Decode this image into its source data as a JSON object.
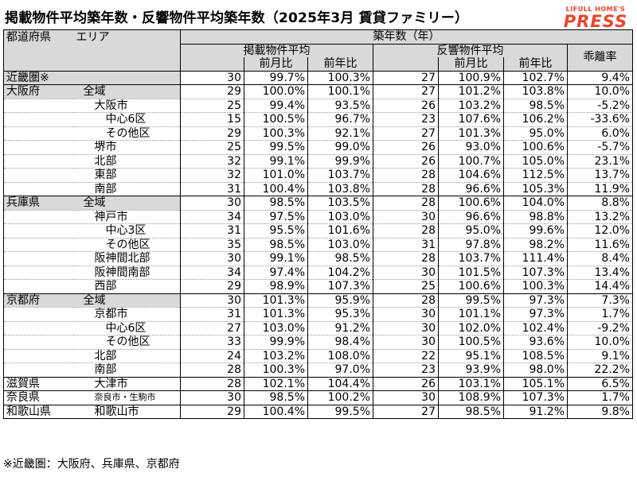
{
  "title": "掲載物件平均築年数・反響物件平均築年数（2025年3月 賃貸ファミリー）",
  "logo": {
    "top": "LIFULL HOME'S",
    "bottom": "PRESS"
  },
  "header": {
    "pref": "都道府県",
    "area": "エリア",
    "group": "築年数（年）",
    "listing": "掲載物件平均",
    "response": "反響物件平均",
    "mom": "前月比",
    "yoy": "前年比",
    "gap": "乖離率"
  },
  "rows": [
    {
      "pref": "近畿圏※",
      "area": "",
      "a": "30",
      "b": "99.7%",
      "c": "100.3%",
      "d": "27",
      "e": "100.9%",
      "f": "102.7%",
      "g": "9.4%"
    },
    {
      "pref": "大阪府",
      "area": "全域",
      "a": "29",
      "b": "100.0%",
      "c": "100.1%",
      "d": "27",
      "e": "101.2%",
      "f": "103.8%",
      "g": "10.0%"
    },
    {
      "pref": "",
      "area": "大阪市",
      "a": "25",
      "b": "99.4%",
      "c": "93.5%",
      "d": "26",
      "e": "103.2%",
      "f": "98.5%",
      "g": "-5.2%"
    },
    {
      "pref": "",
      "area": "中心6区",
      "a": "15",
      "b": "100.5%",
      "c": "96.7%",
      "d": "23",
      "e": "107.6%",
      "f": "106.2%",
      "g": "-33.6%"
    },
    {
      "pref": "",
      "area": "その他区",
      "a": "29",
      "b": "100.3%",
      "c": "92.1%",
      "d": "27",
      "e": "101.3%",
      "f": "95.0%",
      "g": "6.0%"
    },
    {
      "pref": "",
      "area": "堺市",
      "a": "25",
      "b": "99.5%",
      "c": "99.0%",
      "d": "26",
      "e": "93.0%",
      "f": "100.6%",
      "g": "-5.7%"
    },
    {
      "pref": "",
      "area": "北部",
      "a": "32",
      "b": "99.1%",
      "c": "99.9%",
      "d": "26",
      "e": "100.7%",
      "f": "105.0%",
      "g": "23.1%"
    },
    {
      "pref": "",
      "area": "東部",
      "a": "32",
      "b": "101.0%",
      "c": "103.7%",
      "d": "28",
      "e": "104.6%",
      "f": "112.5%",
      "g": "13.7%"
    },
    {
      "pref": "",
      "area": "南部",
      "a": "31",
      "b": "100.4%",
      "c": "103.8%",
      "d": "28",
      "e": "96.6%",
      "f": "105.3%",
      "g": "11.9%"
    },
    {
      "pref": "兵庫県",
      "area": "全域",
      "a": "30",
      "b": "98.5%",
      "c": "103.5%",
      "d": "28",
      "e": "100.6%",
      "f": "104.0%",
      "g": "8.8%"
    },
    {
      "pref": "",
      "area": "神戸市",
      "a": "34",
      "b": "97.5%",
      "c": "103.0%",
      "d": "30",
      "e": "96.6%",
      "f": "98.8%",
      "g": "13.2%"
    },
    {
      "pref": "",
      "area": "中心3区",
      "a": "31",
      "b": "95.5%",
      "c": "101.6%",
      "d": "28",
      "e": "95.0%",
      "f": "99.6%",
      "g": "12.0%"
    },
    {
      "pref": "",
      "area": "その他区",
      "a": "35",
      "b": "98.5%",
      "c": "103.0%",
      "d": "31",
      "e": "97.8%",
      "f": "98.2%",
      "g": "11.6%"
    },
    {
      "pref": "",
      "area": "阪神間北部",
      "a": "30",
      "b": "99.1%",
      "c": "98.5%",
      "d": "28",
      "e": "103.7%",
      "f": "111.4%",
      "g": "8.4%"
    },
    {
      "pref": "",
      "area": "阪神間南部",
      "a": "34",
      "b": "97.4%",
      "c": "104.2%",
      "d": "30",
      "e": "101.5%",
      "f": "107.3%",
      "g": "13.4%"
    },
    {
      "pref": "",
      "area": "西部",
      "a": "29",
      "b": "98.9%",
      "c": "107.3%",
      "d": "25",
      "e": "100.6%",
      "f": "100.3%",
      "g": "14.4%"
    },
    {
      "pref": "京都府",
      "area": "全域",
      "a": "30",
      "b": "101.3%",
      "c": "95.9%",
      "d": "28",
      "e": "99.5%",
      "f": "97.3%",
      "g": "7.3%"
    },
    {
      "pref": "",
      "area": "京都市",
      "a": "31",
      "b": "101.3%",
      "c": "95.3%",
      "d": "30",
      "e": "101.1%",
      "f": "97.3%",
      "g": "1.7%"
    },
    {
      "pref": "",
      "area": "中心6区",
      "a": "27",
      "b": "103.0%",
      "c": "91.2%",
      "d": "30",
      "e": "102.0%",
      "f": "102.4%",
      "g": "-9.2%"
    },
    {
      "pref": "",
      "area": "その他区",
      "a": "33",
      "b": "99.9%",
      "c": "98.4%",
      "d": "30",
      "e": "100.5%",
      "f": "93.6%",
      "g": "10.0%"
    },
    {
      "pref": "",
      "area": "北部",
      "a": "24",
      "b": "103.2%",
      "c": "108.0%",
      "d": "22",
      "e": "95.1%",
      "f": "108.5%",
      "g": "9.1%"
    },
    {
      "pref": "",
      "area": "南部",
      "a": "28",
      "b": "100.3%",
      "c": "97.0%",
      "d": "23",
      "e": "93.9%",
      "f": "98.0%",
      "g": "22.2%"
    },
    {
      "pref": "滋賀県",
      "area": "大津市",
      "a": "28",
      "b": "102.1%",
      "c": "104.4%",
      "d": "26",
      "e": "103.1%",
      "f": "105.1%",
      "g": "6.5%"
    },
    {
      "pref": "奈良県",
      "area": "奈良市・生駒市",
      "a": "30",
      "b": "98.5%",
      "c": "100.2%",
      "d": "30",
      "e": "108.9%",
      "f": "107.3%",
      "g": "1.7%"
    },
    {
      "pref": "和歌山県",
      "area": "和歌山市",
      "a": "29",
      "b": "100.4%",
      "c": "99.5%",
      "d": "27",
      "e": "98.5%",
      "f": "91.2%",
      "g": "9.8%"
    }
  ],
  "footnote": "※近畿圏：大阪府、兵庫県、京都府"
}
